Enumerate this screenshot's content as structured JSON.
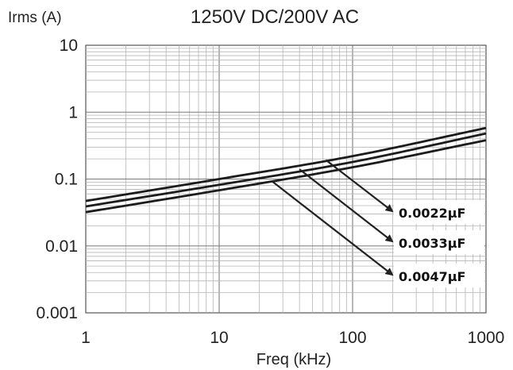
{
  "chart_data": {
    "type": "line",
    "title": "1250V DC/200V AC",
    "xlabel": "Freq (kHz)",
    "ylabel": "Irms (A)",
    "x_scale": "log",
    "y_scale": "log",
    "xlim": [
      1,
      1000
    ],
    "ylim": [
      0.001,
      10
    ],
    "x_ticks": [
      "1",
      "10",
      "100",
      "1000"
    ],
    "y_ticks": [
      "10",
      "1",
      "0.1",
      "0.01",
      "0.001"
    ],
    "grid": true,
    "series": [
      {
        "name": "0.0022µF",
        "x": [
          1,
          10,
          100,
          1000
        ],
        "values": [
          0.032,
          0.068,
          0.15,
          0.38
        ]
      },
      {
        "name": "0.0033µF",
        "x": [
          1,
          10,
          100,
          1000
        ],
        "values": [
          0.039,
          0.082,
          0.18,
          0.48
        ]
      },
      {
        "name": "0.0047µF",
        "x": [
          1,
          10,
          100,
          1000
        ],
        "values": [
          0.047,
          0.1,
          0.22,
          0.58
        ]
      }
    ],
    "annotations": [
      {
        "text": "0.0022µF",
        "x": 63,
        "y": 0.193
      },
      {
        "text": "0.0033µF",
        "x": 40,
        "y": 0.14
      },
      {
        "text": "0.0047µF",
        "x": 25,
        "y": 0.092
      }
    ]
  }
}
